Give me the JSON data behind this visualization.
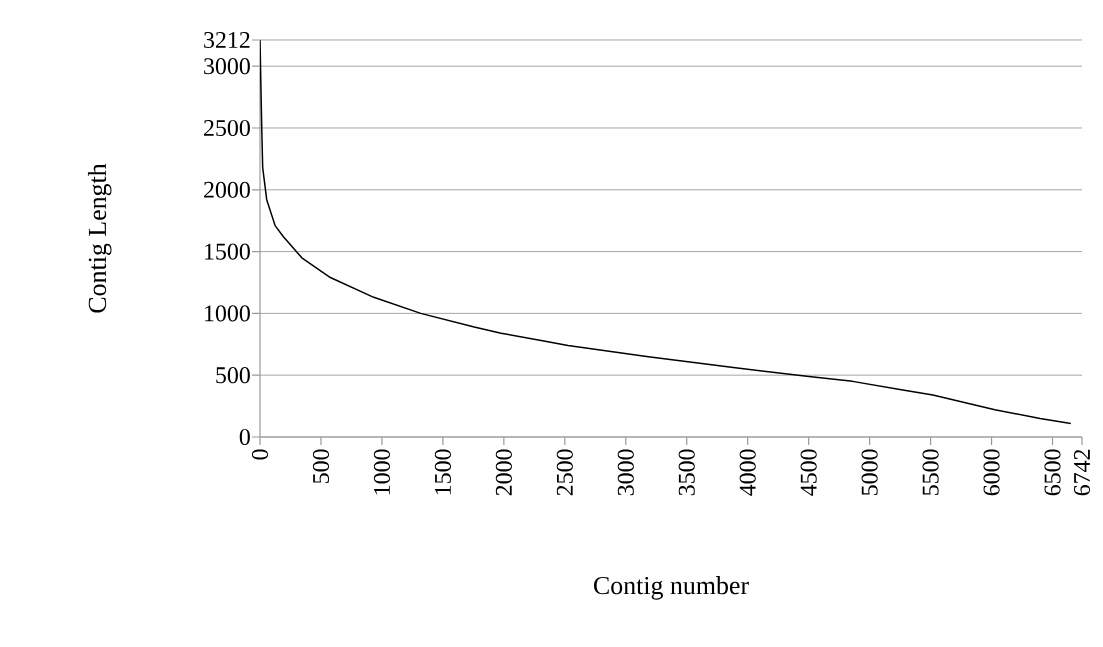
{
  "chart_data": {
    "type": "line",
    "xlabel": "Contig number",
    "ylabel": "Contig Length",
    "x": [
      0,
      14,
      22,
      55,
      124,
      192,
      343,
      577,
      933,
      1318,
      1757,
      1977,
      2306,
      2526,
      3185,
      3899,
      4502,
      4860,
      5272,
      5519,
      6027,
      6398,
      6650
    ],
    "values": [
      3210,
      2510,
      2180,
      1920,
      1710,
      1620,
      1450,
      1290,
      1130,
      1000,
      890,
      840,
      780,
      740,
      650,
      560,
      490,
      450,
      380,
      340,
      220,
      150,
      110
    ],
    "color": "#000000",
    "xlim": [
      0,
      6742
    ],
    "ylim": [
      0,
      3212
    ],
    "xticks": [
      0,
      500,
      1000,
      1500,
      2000,
      2500,
      3000,
      3500,
      4000,
      4500,
      5000,
      5500,
      6000,
      6500,
      6742
    ],
    "yticks": [
      0,
      500,
      1000,
      1500,
      2000,
      2500,
      3000,
      3212
    ],
    "grid": "y"
  }
}
